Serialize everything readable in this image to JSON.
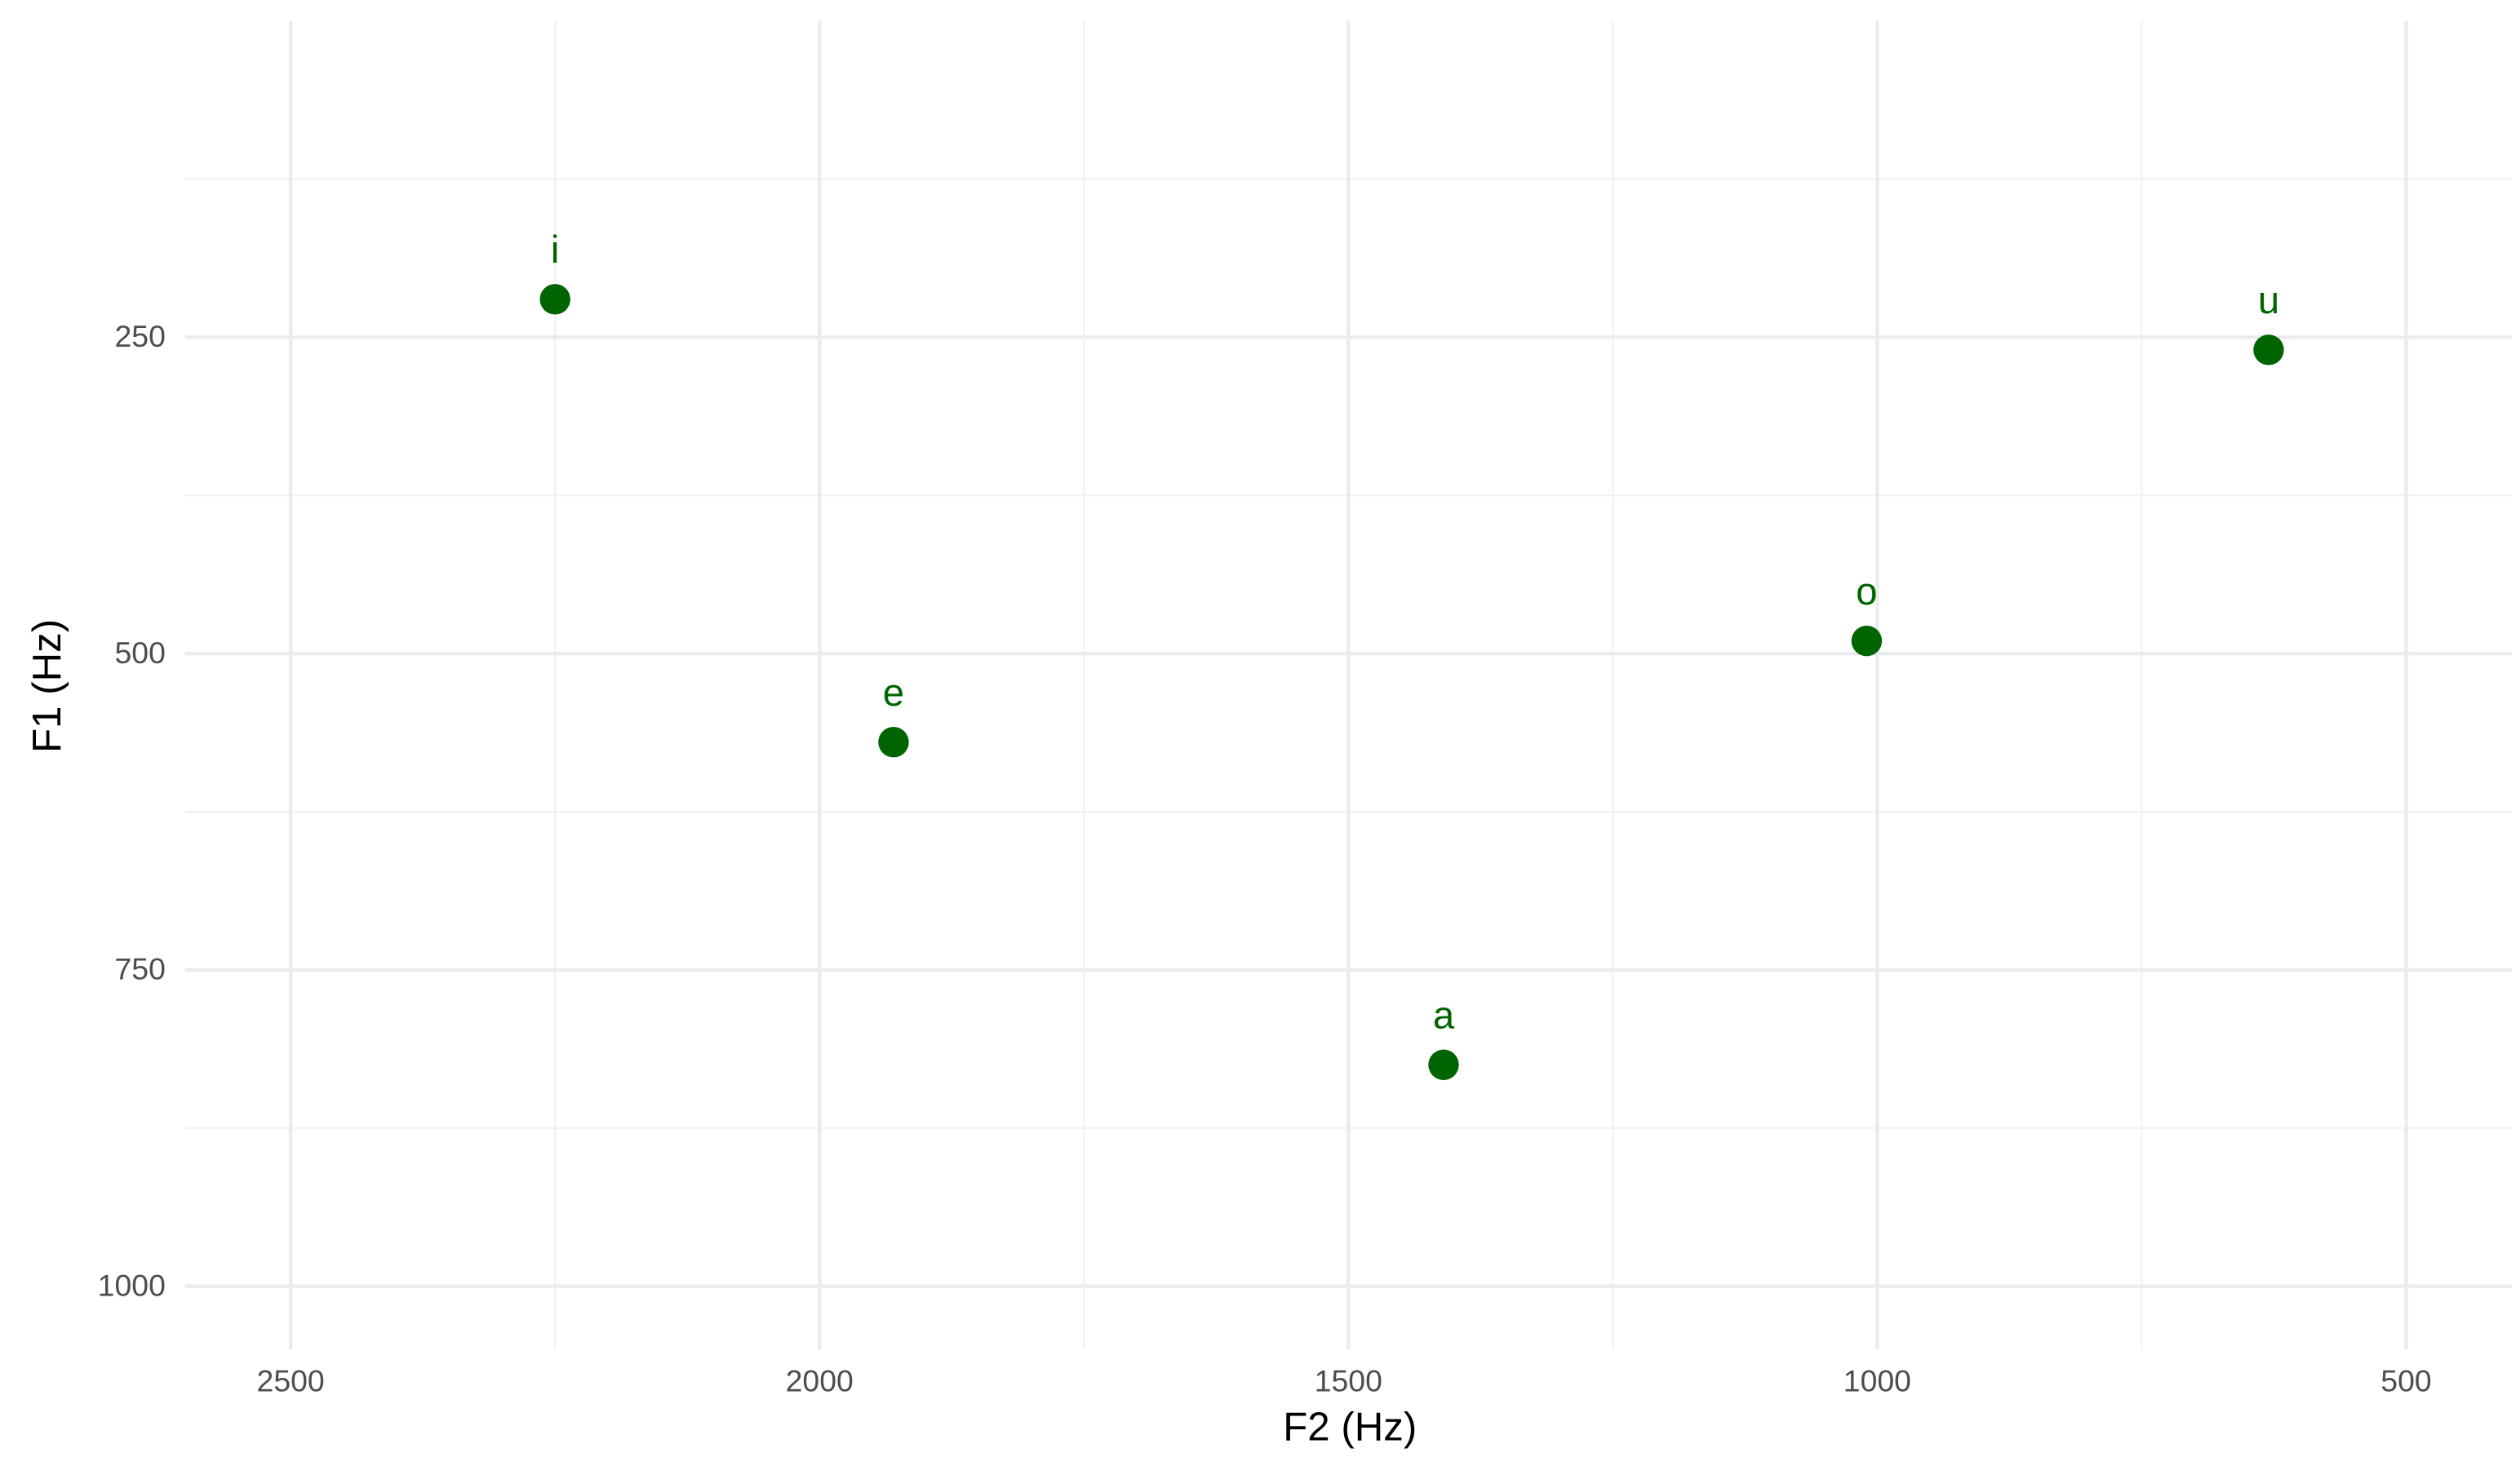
{
  "chart_data": {
    "type": "scatter",
    "x_label": "F2 (Hz)",
    "y_label": "F1 (Hz)",
    "labels": [
      "i",
      "e",
      "a",
      "o",
      "u"
    ],
    "x": [
      2250,
      1930,
      1410,
      1010,
      630
    ],
    "values": [
      220,
      570,
      825,
      490,
      260
    ],
    "color": "#006400",
    "xlim": [
      2600,
      400
    ],
    "xticks": [
      2500,
      2000,
      1500,
      1000,
      500
    ],
    "xminor": [
      2250,
      1750,
      1250,
      750
    ],
    "ylim": [
      1050,
      0
    ],
    "yticks": [
      250,
      500,
      750,
      1000
    ],
    "yminor": [
      125,
      375,
      625,
      875
    ],
    "grid": true
  }
}
